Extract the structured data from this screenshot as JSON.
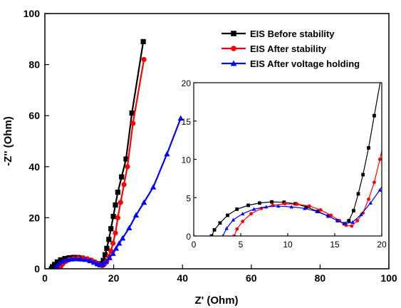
{
  "chart_data": {
    "type": "line",
    "xlabel": "Z' (Ohm)",
    "ylabel": "-Z'' (Ohm)",
    "xlim": [
      0,
      100
    ],
    "ylim": [
      0,
      100
    ],
    "xticks": [
      0,
      20,
      40,
      60,
      80,
      100
    ],
    "yticks": [
      0,
      20,
      40,
      60,
      80,
      100
    ],
    "legend": "top-right",
    "series": [
      {
        "name": "EIS Before stability",
        "color": "#000000",
        "marker": "square",
        "x": [
          1.9,
          2.2,
          2.8,
          3.6,
          4.6,
          5.8,
          7.0,
          8.3,
          9.6,
          10.8,
          12.0,
          13.2,
          14.3,
          15.3,
          16.0,
          16.5,
          17.0,
          17.5,
          18.0,
          18.6,
          19.2,
          19.9,
          20.5,
          21.2,
          22.3,
          23.6,
          25.3,
          28.6
        ],
        "y": [
          0.0,
          0.8,
          1.7,
          2.7,
          3.5,
          4.0,
          4.3,
          4.45,
          4.4,
          4.2,
          3.8,
          3.2,
          2.6,
          2.0,
          1.6,
          2.0,
          3.3,
          5.5,
          8.0,
          11.5,
          15.7,
          20.5,
          25.0,
          30.0,
          36.0,
          43.0,
          61.0,
          89.0
        ]
      },
      {
        "name": "EIS After stability",
        "color": "#ff0000",
        "marker": "circle",
        "x": [
          4.3,
          4.6,
          5.2,
          6.1,
          7.2,
          8.4,
          9.7,
          11.0,
          12.3,
          13.5,
          14.6,
          15.5,
          16.2,
          16.8,
          17.4,
          18.0,
          18.6,
          19.2,
          19.8,
          20.5,
          21.2,
          22.0,
          23.0,
          24.0,
          25.6,
          28.8
        ],
        "y": [
          0.0,
          0.9,
          1.9,
          2.9,
          3.6,
          4.0,
          4.2,
          4.15,
          3.9,
          3.4,
          2.7,
          2.0,
          1.4,
          1.3,
          2.0,
          3.0,
          4.8,
          7.0,
          10.0,
          14.0,
          20.0,
          26.0,
          33.0,
          40.0,
          57.0,
          82.0
        ]
      },
      {
        "name": "EIS After voltage holding",
        "color": "#0000ff",
        "marker": "triangle",
        "x": [
          3.1,
          3.5,
          4.2,
          5.2,
          6.4,
          7.7,
          9.0,
          10.4,
          11.8,
          13.1,
          14.3,
          15.3,
          16.1,
          16.9,
          17.8,
          18.8,
          19.8,
          20.7,
          21.6,
          22.6,
          24.5,
          26.5,
          28.8,
          31.5,
          35.5,
          39.5
        ],
        "y": [
          0.0,
          1.0,
          2.1,
          2.9,
          3.5,
          3.8,
          3.9,
          3.8,
          3.6,
          3.2,
          2.6,
          2.0,
          1.6,
          1.8,
          2.8,
          4.3,
          6.0,
          8.0,
          10.0,
          12.0,
          16.0,
          21.0,
          26.0,
          32.0,
          45.0,
          59.0
        ]
      }
    ],
    "inset": {
      "xlim": [
        0,
        20
      ],
      "ylim": [
        0,
        20
      ],
      "xticks": [
        0,
        5,
        10,
        15,
        20
      ],
      "yticks": [
        0,
        5,
        10,
        15,
        20
      ]
    }
  }
}
